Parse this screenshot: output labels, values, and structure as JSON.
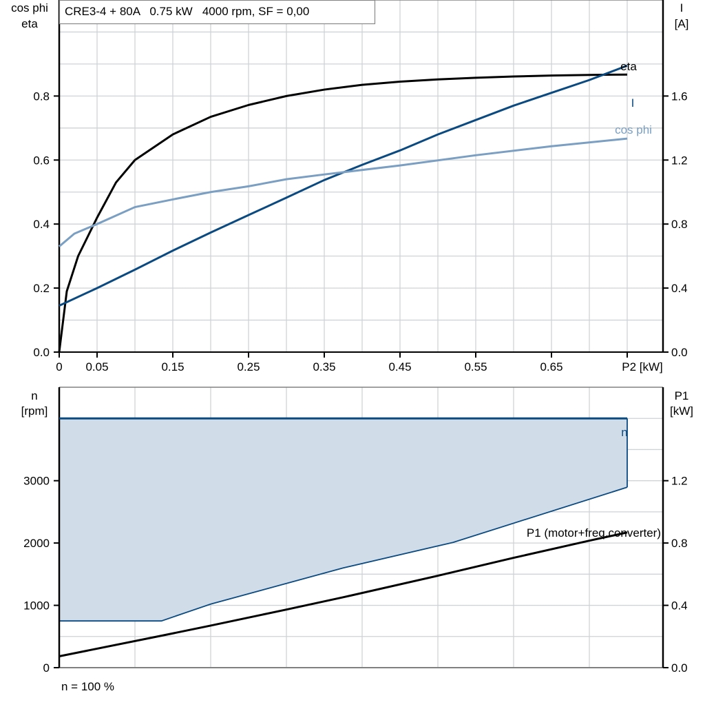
{
  "chart_data": [
    {
      "type": "line",
      "title": "CRE3-4 + 80A   0.75 kW   4000 rpm, SF = 0,00",
      "xlabel": "P2 [kW]",
      "xlim": [
        0,
        0.8
      ],
      "x_ticks": [
        "0",
        "0.05",
        "0.15",
        "0.25",
        "0.35",
        "0.45",
        "0.55",
        "0.65"
      ],
      "grid": true,
      "y_left": {
        "label": [
          "cos phi",
          "eta"
        ],
        "ylim": [
          0,
          1.1
        ],
        "ticks": [
          "0.0",
          "0.2",
          "0.4",
          "0.6",
          "0.8"
        ]
      },
      "y_right": {
        "label": [
          "I",
          "[A]"
        ],
        "ylim": [
          0,
          2.2
        ],
        "ticks": [
          "0.0",
          "0.4",
          "0.8",
          "1.2",
          "1.6"
        ]
      },
      "series": [
        {
          "name": "eta",
          "axis": "left",
          "color": "#000000",
          "x": [
            0,
            0.01,
            0.025,
            0.05,
            0.075,
            0.1,
            0.15,
            0.2,
            0.25,
            0.3,
            0.35,
            0.4,
            0.45,
            0.5,
            0.55,
            0.6,
            0.65,
            0.7,
            0.75
          ],
          "y": [
            0,
            0.19,
            0.3,
            0.42,
            0.53,
            0.6,
            0.68,
            0.735,
            0.772,
            0.8,
            0.82,
            0.835,
            0.845,
            0.852,
            0.857,
            0.861,
            0.864,
            0.866,
            0.867
          ]
        },
        {
          "name": "I",
          "axis": "right",
          "color": "#0b4a80",
          "x": [
            0,
            0.05,
            0.1,
            0.15,
            0.2,
            0.25,
            0.3,
            0.35,
            0.4,
            0.45,
            0.5,
            0.55,
            0.6,
            0.65,
            0.7,
            0.75
          ],
          "y": [
            0.29,
            0.4,
            0.515,
            0.634,
            0.747,
            0.856,
            0.965,
            1.075,
            1.17,
            1.26,
            1.36,
            1.45,
            1.54,
            1.62,
            1.7,
            1.79
          ]
        },
        {
          "name": "cos phi",
          "axis": "left",
          "color": "#7a9fc2",
          "x": [
            0,
            0.02,
            0.05,
            0.1,
            0.15,
            0.2,
            0.25,
            0.3,
            0.35,
            0.45,
            0.55,
            0.65,
            0.75
          ],
          "y": [
            0.33,
            0.37,
            0.4,
            0.453,
            0.477,
            0.5,
            0.518,
            0.54,
            0.555,
            0.583,
            0.615,
            0.643,
            0.667
          ]
        }
      ]
    },
    {
      "type": "area",
      "footer": "n = 100 %",
      "xlim": [
        0,
        0.8
      ],
      "grid": true,
      "y_left": {
        "label": [
          "n",
          "[rpm]"
        ],
        "ylim": [
          0,
          4500
        ],
        "ticks": [
          "0",
          "1000",
          "2000",
          "3000"
        ]
      },
      "y_right": {
        "label": [
          "P1",
          "[kW]"
        ],
        "ylim": [
          0,
          1.8
        ],
        "ticks": [
          "0.0",
          "0.4",
          "0.8",
          "1.2"
        ]
      },
      "area": {
        "fill": "#d0dce8",
        "line_color": "#0b4a80",
        "upper": {
          "x": [
            0,
            0.75
          ],
          "y": [
            4000,
            4000
          ]
        },
        "lower": {
          "x": [
            0,
            0.135,
            0.2,
            0.375,
            0.52,
            0.75
          ],
          "y": [
            750,
            750,
            1020,
            1600,
            2010,
            2895
          ]
        }
      },
      "series": [
        {
          "name": "n",
          "axis": "left",
          "color": "#0b4a80",
          "x": [
            0,
            0.75
          ],
          "y": [
            4000,
            4000
          ]
        },
        {
          "name": "P1 (motor+freq.converter)",
          "axis": "right",
          "color": "#000000",
          "x": [
            0,
            0.135,
            0.2,
            0.3,
            0.376,
            0.5,
            0.6,
            0.7,
            0.75
          ],
          "y": [
            0.073,
            0.205,
            0.27,
            0.373,
            0.453,
            0.59,
            0.705,
            0.815,
            0.868
          ]
        }
      ]
    }
  ]
}
